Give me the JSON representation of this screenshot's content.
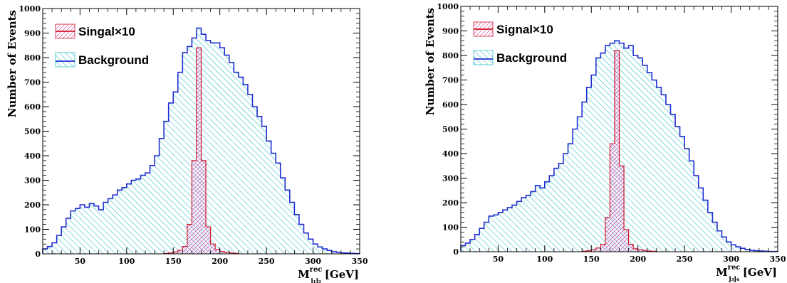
{
  "chart_data": [
    {
      "type": "histogram",
      "title": "",
      "ylabel": "Number of Events",
      "xlabel": {
        "base": "M",
        "sup": "rec",
        "sub": "j₁j₂",
        "unit": "[GeV]"
      },
      "xlim": [
        10,
        350
      ],
      "ylim": [
        0,
        1000
      ],
      "bin_width": 5,
      "x_ticks": [
        "50",
        "100",
        "150",
        "200",
        "250",
        "300",
        "350"
      ],
      "y_ticks": [
        "0",
        "100",
        "200",
        "300",
        "400",
        "500",
        "600",
        "700",
        "800",
        "900",
        "1000"
      ],
      "legend_placement": "top-left",
      "series": [
        {
          "name": "Singal×10",
          "color": "#d0182c",
          "fill": "#d9228a",
          "x": [
            140,
            145,
            150,
            155,
            160,
            165,
            170,
            175,
            180,
            185,
            190,
            195,
            200,
            205,
            210,
            215
          ],
          "values": [
            2,
            4,
            8,
            15,
            30,
            120,
            380,
            840,
            380,
            110,
            40,
            18,
            10,
            6,
            4,
            2
          ]
        },
        {
          "name": "Background",
          "color": "#1f2fd0",
          "fill": "#34c0c8",
          "x": [
            10,
            15,
            20,
            25,
            30,
            35,
            40,
            45,
            50,
            55,
            60,
            65,
            70,
            75,
            80,
            85,
            90,
            95,
            100,
            105,
            110,
            115,
            120,
            125,
            130,
            135,
            140,
            145,
            150,
            155,
            160,
            165,
            170,
            175,
            180,
            185,
            190,
            195,
            200,
            205,
            210,
            215,
            220,
            225,
            230,
            235,
            240,
            245,
            250,
            255,
            260,
            265,
            270,
            275,
            280,
            285,
            290,
            295,
            300,
            305,
            310,
            315,
            320,
            325,
            330,
            335,
            340,
            345
          ],
          "values": [
            20,
            30,
            45,
            75,
            110,
            145,
            175,
            185,
            200,
            190,
            205,
            195,
            180,
            210,
            225,
            240,
            260,
            270,
            285,
            300,
            305,
            320,
            330,
            360,
            400,
            470,
            540,
            615,
            660,
            740,
            820,
            845,
            880,
            920,
            895,
            870,
            860,
            860,
            840,
            810,
            780,
            740,
            720,
            690,
            650,
            600,
            560,
            520,
            460,
            410,
            370,
            310,
            260,
            210,
            160,
            120,
            85,
            60,
            40,
            28,
            20,
            14,
            9,
            6,
            4,
            3,
            2,
            1
          ]
        }
      ]
    },
    {
      "type": "histogram",
      "title": "",
      "ylabel": "Number of Events",
      "xlabel": {
        "base": "M",
        "sup": "rec",
        "sub": "j₃j₄",
        "unit": "[GeV]"
      },
      "xlim": [
        10,
        350
      ],
      "ylim": [
        0,
        1000
      ],
      "bin_width": 5,
      "x_ticks": [
        "50",
        "100",
        "150",
        "200",
        "250",
        "300",
        "350"
      ],
      "y_ticks": [
        "0",
        "100",
        "200",
        "300",
        "400",
        "500",
        "600",
        "700",
        "800",
        "900",
        "1000"
      ],
      "legend_placement": "top-left",
      "series": [
        {
          "name": "Signal×10",
          "color": "#d0182c",
          "fill": "#d9228a",
          "x": [
            140,
            145,
            150,
            155,
            160,
            165,
            170,
            175,
            180,
            185,
            190,
            195,
            200,
            205,
            210,
            215
          ],
          "values": [
            2,
            4,
            8,
            15,
            30,
            140,
            440,
            820,
            350,
            90,
            30,
            12,
            8,
            5,
            3,
            2
          ]
        },
        {
          "name": "Background",
          "color": "#1f2fd0",
          "fill": "#34c0c8",
          "x": [
            10,
            15,
            20,
            25,
            30,
            35,
            40,
            45,
            50,
            55,
            60,
            65,
            70,
            75,
            80,
            85,
            90,
            95,
            100,
            105,
            110,
            115,
            120,
            125,
            130,
            135,
            140,
            145,
            150,
            155,
            160,
            165,
            170,
            175,
            180,
            185,
            190,
            195,
            200,
            205,
            210,
            215,
            220,
            225,
            230,
            235,
            240,
            245,
            250,
            255,
            260,
            265,
            270,
            275,
            280,
            285,
            290,
            295,
            300,
            305,
            310,
            315,
            320,
            325,
            330,
            335,
            340,
            345
          ],
          "values": [
            25,
            35,
            50,
            70,
            95,
            120,
            145,
            150,
            160,
            170,
            180,
            190,
            205,
            220,
            230,
            245,
            270,
            260,
            285,
            310,
            340,
            360,
            400,
            440,
            500,
            550,
            610,
            670,
            720,
            790,
            810,
            840,
            850,
            860,
            850,
            830,
            840,
            800,
            790,
            760,
            730,
            700,
            670,
            640,
            600,
            560,
            510,
            470,
            420,
            370,
            310,
            260,
            210,
            160,
            120,
            85,
            60,
            40,
            28,
            20,
            14,
            9,
            6,
            4,
            3,
            2,
            1,
            1
          ]
        }
      ]
    }
  ]
}
